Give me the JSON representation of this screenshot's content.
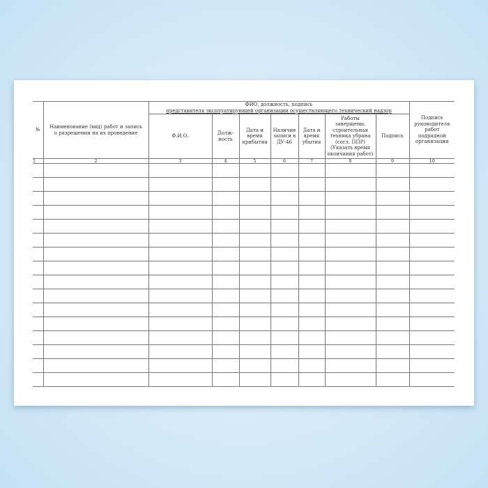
{
  "header": {
    "col_no": "№",
    "col_work": "Наименование (вид) работ и запись о разрешении на их проведение",
    "group_line1": "ФИО, должность, подпись",
    "group_line2": "представителя эксплуатирующей организации осуществляющего технический надзор",
    "col_fio": "Ф.И.О.",
    "col_position": "Долж-ность",
    "col_arrival": "Дата и время прибытия",
    "col_record": "Наличие записи в ДУ-46",
    "col_departure": "Дата и время убытия",
    "col_completed": "Работы завершены, строительная техника убрана (согл. ППР) (Указать время окончания работ)",
    "col_signature": "Подпись",
    "col_contractor": "Подпись руководителя работ подрядной организации"
  },
  "column_numbers": [
    "1",
    "2",
    "3",
    "4",
    "5",
    "6",
    "7",
    "8",
    "9",
    "10"
  ],
  "empty_rows": 16
}
